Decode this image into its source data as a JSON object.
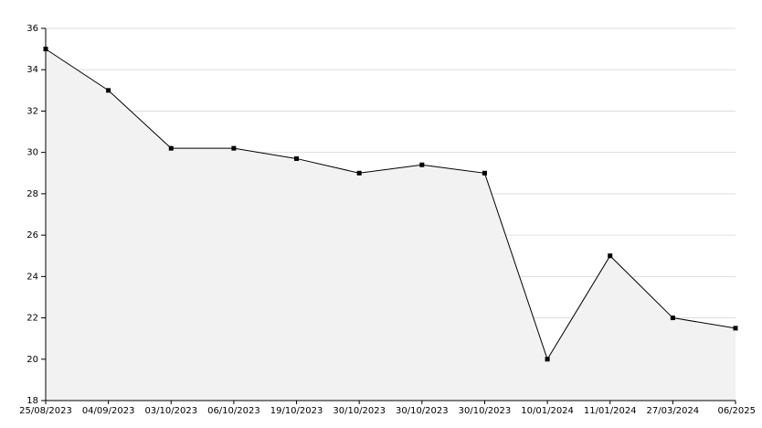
{
  "chart_data": {
    "type": "area-line",
    "categories": [
      "25/08/2023",
      "04/09/2023",
      "03/10/2023",
      "06/10/2023",
      "19/10/2023",
      "30/10/2023",
      "30/10/2023",
      "30/10/2023",
      "10/01/2024",
      "11/01/2024",
      "27/03/2024",
      "06/2025"
    ],
    "values": [
      35,
      33,
      30.2,
      30.2,
      29.7,
      29.0,
      29.4,
      29.0,
      20,
      25,
      22,
      21.5
    ],
    "color": "#000000",
    "fill": "#f2f2f2",
    "ylim": [
      18,
      36
    ],
    "yticks": [
      18,
      20,
      22,
      24,
      26,
      28,
      30,
      32,
      34,
      36
    ],
    "grid": true
  }
}
